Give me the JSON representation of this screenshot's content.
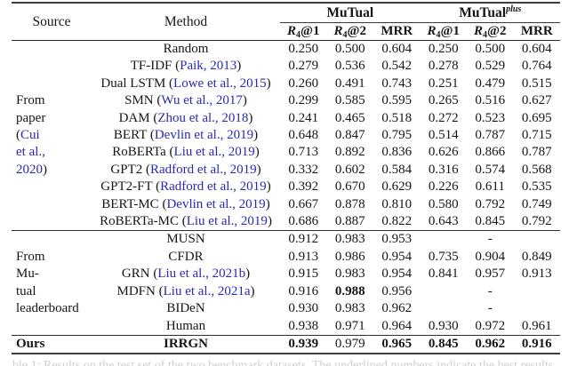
{
  "colors": {
    "citation_blue": "#2a29b4",
    "rule_dark": "#3e3e3e",
    "text": "#161616",
    "caption_faint": "#cfcfcf"
  },
  "punct": {
    "cite_open": " (",
    "cite_close": ")"
  },
  "header": {
    "source": "Source",
    "method": "Method",
    "groups": [
      {
        "name": "MuTual",
        "sup": ""
      },
      {
        "name": "MuTual",
        "sup": "plus"
      }
    ],
    "metrics": [
      {
        "r": "R",
        "sub": "4",
        "at": "@1"
      },
      {
        "r": "R",
        "sub": "4",
        "at": "@2"
      },
      {
        "label": "MRR"
      },
      {
        "r": "R",
        "sub": "4",
        "at": "@1"
      },
      {
        "r": "R",
        "sub": "4",
        "at": "@2"
      },
      {
        "label": "MRR"
      }
    ]
  },
  "sections": [
    {
      "source_lines": [
        [
          {
            "t": "From",
            "c": "k"
          }
        ],
        [
          {
            "t": "paper",
            "c": "k"
          }
        ],
        [
          {
            "t": "(",
            "c": "k"
          },
          {
            "t": "Cui",
            "c": "b"
          }
        ],
        [
          {
            "t": "et al.,",
            "c": "b"
          }
        ],
        [
          {
            "t": "2020",
            "c": "b"
          },
          {
            "t": ")",
            "c": "k"
          }
        ]
      ],
      "rows": [
        {
          "method": {
            "name": "Random"
          },
          "values": [
            "0.250",
            "0.500",
            "0.604",
            "0.250",
            "0.500",
            "0.604"
          ]
        },
        {
          "method": {
            "name": "TF-IDF",
            "cite": "Paik, 2013"
          },
          "values": [
            "0.279",
            "0.536",
            "0.542",
            "0.278",
            "0.529",
            "0.764"
          ]
        },
        {
          "method": {
            "name": "Dual LSTM",
            "cite": "Lowe et al., 2015"
          },
          "values": [
            "0.260",
            "0.491",
            "0.743",
            "0.251",
            "0.479",
            "0.515"
          ]
        },
        {
          "method": {
            "name": "SMN",
            "cite": "Wu et al., 2017"
          },
          "values": [
            "0.299",
            "0.585",
            "0.595",
            "0.265",
            "0.516",
            "0.627"
          ]
        },
        {
          "method": {
            "name": "DAM",
            "cite": "Zhou et al., 2018"
          },
          "values": [
            "0.241",
            "0.465",
            "0.518",
            "0.272",
            "0.523",
            "0.695"
          ]
        },
        {
          "method": {
            "name": "BERT",
            "cite": "Devlin et al., 2019"
          },
          "values": [
            "0.648",
            "0.847",
            "0.795",
            "0.514",
            "0.787",
            "0.715"
          ]
        },
        {
          "method": {
            "name": "RoBERTa",
            "cite": "Liu et al., 2019"
          },
          "values": [
            "0.713",
            "0.892",
            "0.836",
            "0.626",
            "0.866",
            "0.787"
          ]
        },
        {
          "method": {
            "name": "GPT2",
            "cite": "Radford et al., 2019"
          },
          "values": [
            "0.332",
            "0.602",
            "0.584",
            "0.316",
            "0.574",
            "0.568"
          ]
        },
        {
          "method": {
            "name": "GPT2-FT",
            "cite": "Radford et al., 2019"
          },
          "values": [
            "0.392",
            "0.670",
            "0.629",
            "0.226",
            "0.611",
            "0.535"
          ]
        },
        {
          "method": {
            "name": "BERT-MC",
            "cite": "Devlin et al., 2019"
          },
          "values": [
            "0.667",
            "0.878",
            "0.810",
            "0.580",
            "0.792",
            "0.749"
          ]
        },
        {
          "method": {
            "name": "RoBERTa-MC",
            "cite": "Liu et al., 2019"
          },
          "values": [
            "0.686",
            "0.887",
            "0.822",
            "0.643",
            "0.845",
            "0.792"
          ]
        }
      ]
    },
    {
      "source_lines": [
        [
          {
            "t": "From",
            "c": "k"
          }
        ],
        [
          {
            "t": "Mu-",
            "c": "k"
          }
        ],
        [
          {
            "t": "tual",
            "c": "k"
          }
        ],
        [
          {
            "t": "leaderboard",
            "c": "k"
          }
        ]
      ],
      "rows": [
        {
          "method": {
            "name": "MUSN"
          },
          "values": [
            "0.912",
            "0.983",
            "0.953"
          ],
          "plus_dash": "-"
        },
        {
          "method": {
            "name": "CFDR"
          },
          "values": [
            "0.913",
            "0.986",
            "0.954",
            "0.735",
            "0.904",
            "0.849"
          ]
        },
        {
          "method": {
            "name": "GRN",
            "cite": "Liu et al., 2021b"
          },
          "values": [
            "0.915",
            "0.983",
            "0.954",
            "0.841",
            "0.957",
            "0.913"
          ]
        },
        {
          "method": {
            "name": "MDFN",
            "cite": "Liu et al., 2021a"
          },
          "values": [
            "0.916",
            "0.988",
            "0.956"
          ],
          "bold": [
            1
          ],
          "plus_dash": "-"
        },
        {
          "method": {
            "name": "BIDeN"
          },
          "values": [
            "0.930",
            "0.983",
            "0.962"
          ],
          "plus_dash": "-"
        },
        {
          "method": {
            "name": "Human"
          },
          "values": [
            "0.938",
            "0.971",
            "0.964",
            "0.930",
            "0.972",
            "0.961"
          ]
        }
      ]
    },
    {
      "source_lines": [
        [
          {
            "t": "Ours",
            "c": "k",
            "bold": true
          }
        ]
      ],
      "rows": [
        {
          "method": {
            "name": "IRRGN",
            "bold": true
          },
          "values": [
            "0.939",
            "0.979",
            "0.965",
            "0.845",
            "0.962",
            "0.916"
          ],
          "bold": [
            0,
            2,
            3,
            4,
            5
          ]
        }
      ]
    }
  ],
  "caption": {
    "fragment": "ble 1: Results on the test set of the two benchmark datasets. The underlined numbers indicate the best results."
  }
}
